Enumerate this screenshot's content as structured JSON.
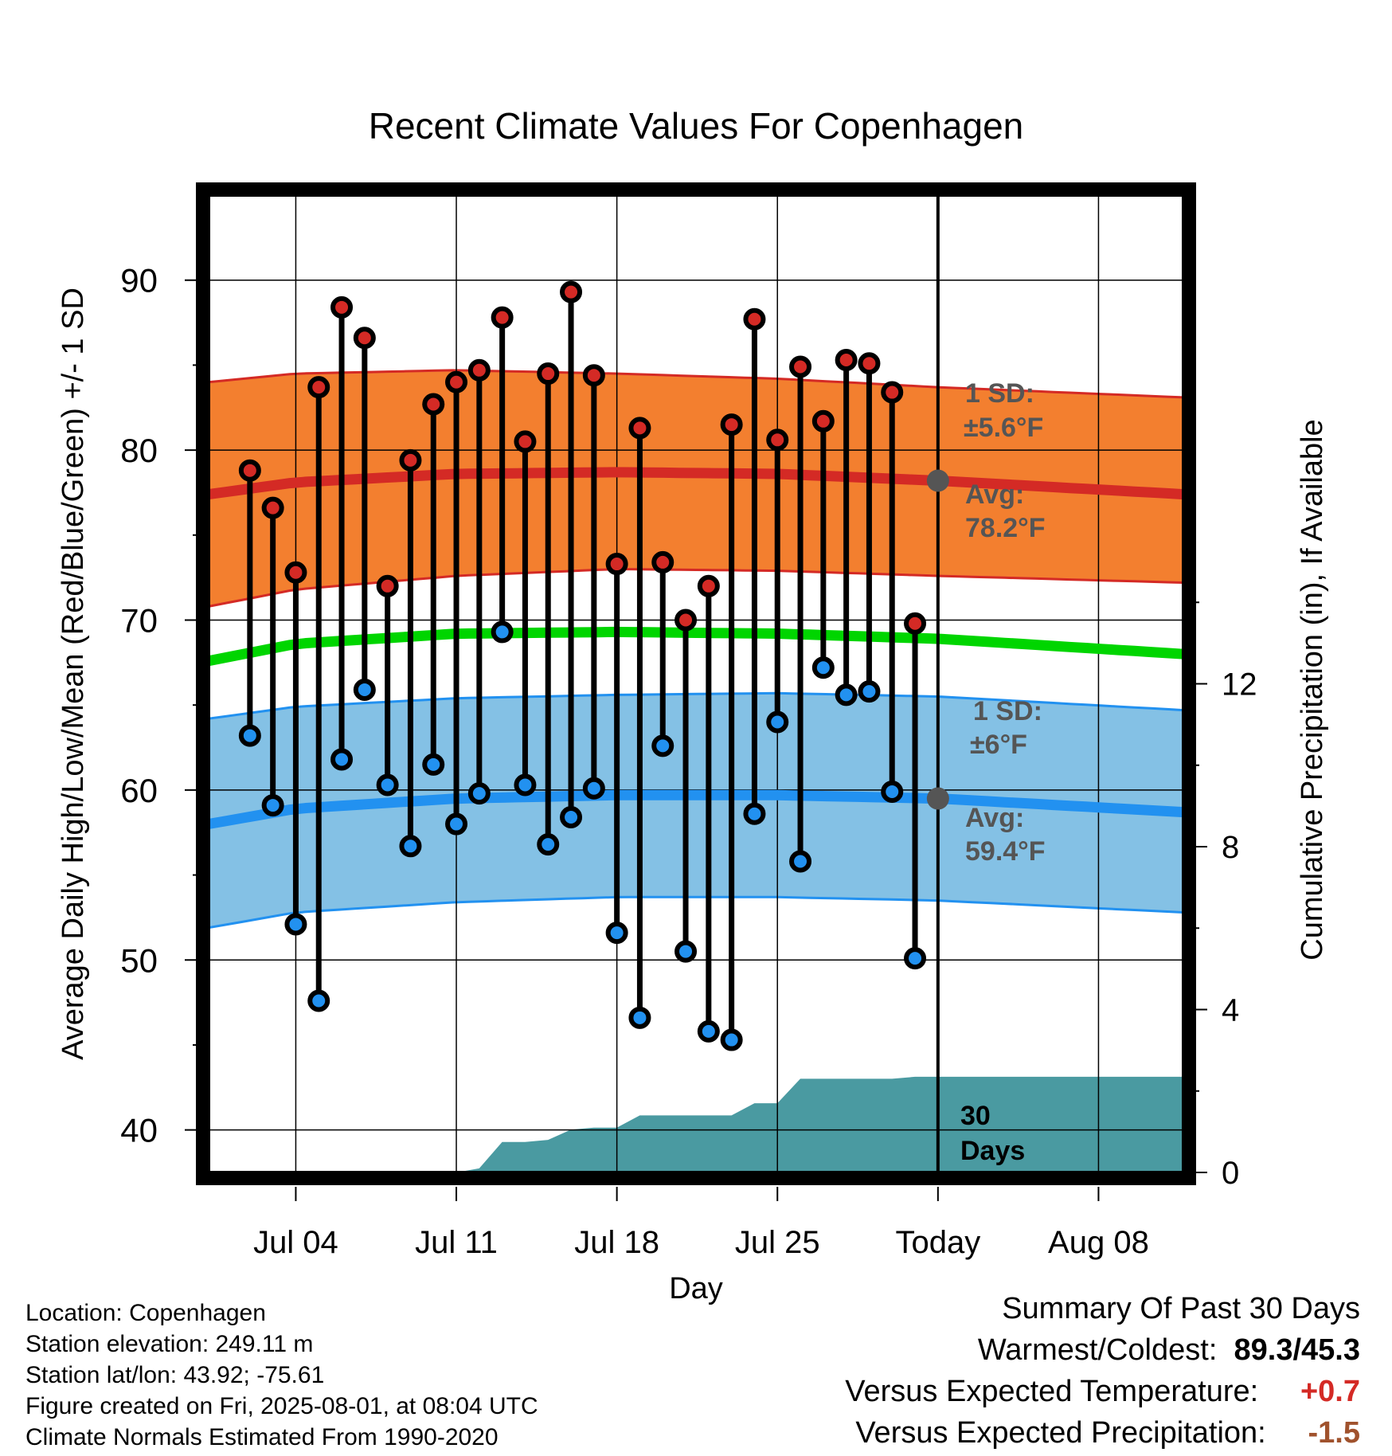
{
  "chart_data": {
    "type": "line",
    "title": "Recent Climate Values For Copenhagen",
    "xlabel": "Day",
    "ylabel": "Average Daily High/Low/Mean (Red/Blue/Green) +/- 1 SD",
    "y2label": "Cumulative Precipitation (in), If Available",
    "ylim": [
      37.5,
      95
    ],
    "y2lim": [
      0,
      24
    ],
    "yticks": [
      40,
      50,
      60,
      70,
      80,
      90
    ],
    "y2ticks": [
      0,
      4,
      8,
      12
    ],
    "xticks": [
      "Jul 04",
      "Jul 11",
      "Jul 18",
      "Jul 25",
      "Today",
      "Aug 08"
    ],
    "xtick_days": [
      4,
      11,
      18,
      25,
      32,
      39
    ],
    "xlim": [
      0.2,
      42.7
    ],
    "today_day": 32,
    "grid": true,
    "observed": {
      "days": [
        2,
        3,
        4,
        5,
        6,
        7,
        8,
        9,
        10,
        11,
        12,
        13,
        14,
        15,
        16,
        17,
        18,
        19,
        20,
        21,
        22,
        23,
        24,
        25,
        26,
        27,
        28,
        29,
        30,
        31
      ],
      "highs": [
        78.8,
        76.6,
        72.8,
        83.7,
        88.4,
        86.6,
        72.0,
        79.4,
        82.7,
        84.0,
        84.7,
        87.8,
        80.5,
        84.5,
        89.3,
        84.4,
        73.3,
        81.3,
        73.4,
        70.0,
        72.0,
        81.5,
        87.7,
        80.6,
        84.9,
        81.7,
        85.3,
        85.1,
        83.4,
        69.8
      ],
      "lows": [
        63.2,
        59.1,
        52.1,
        47.6,
        61.8,
        65.9,
        60.3,
        56.7,
        61.5,
        58.0,
        59.8,
        69.3,
        60.3,
        56.8,
        58.4,
        60.1,
        51.6,
        46.6,
        62.6,
        50.5,
        45.8,
        45.3,
        58.6,
        64.0,
        55.8,
        67.2,
        65.6,
        65.8,
        59.9,
        50.1
      ]
    },
    "normals": {
      "days": [
        0.2,
        4,
        11,
        18,
        25,
        32,
        42.7
      ],
      "high_avg": [
        77.4,
        78.1,
        78.6,
        78.7,
        78.6,
        78.2,
        77.4
      ],
      "high_sd_upper": [
        84.0,
        84.5,
        84.7,
        84.5,
        84.2,
        83.7,
        83.1
      ],
      "high_sd_lower": [
        70.8,
        71.8,
        72.6,
        73.0,
        72.9,
        72.6,
        72.2
      ],
      "mean_avg": [
        67.6,
        68.6,
        69.2,
        69.3,
        69.2,
        68.9,
        68.0
      ],
      "low_avg": [
        58.0,
        58.9,
        59.5,
        59.7,
        59.7,
        59.5,
        58.7
      ],
      "low_sd_upper": [
        64.2,
        64.9,
        65.4,
        65.6,
        65.7,
        65.5,
        64.7
      ],
      "low_sd_lower": [
        51.9,
        52.8,
        53.4,
        53.7,
        53.7,
        53.5,
        52.8
      ]
    },
    "precip_cumulative": {
      "days": [
        0.2,
        11,
        12,
        13,
        14,
        15,
        16,
        17,
        18,
        19,
        20,
        21,
        22,
        23,
        24,
        25,
        26,
        27,
        28,
        29,
        30,
        31,
        32,
        42.7
      ],
      "values": [
        0,
        0,
        0.1,
        0.75,
        0.75,
        0.8,
        1.05,
        1.1,
        1.1,
        1.4,
        1.4,
        1.4,
        1.4,
        1.4,
        1.7,
        1.7,
        2.3,
        2.3,
        2.3,
        2.3,
        2.3,
        2.35,
        2.35,
        2.35
      ]
    },
    "annotations": {
      "high_sd": [
        "1 SD:",
        "±5.6°F"
      ],
      "high_avg": [
        "Avg:",
        "78.2°F"
      ],
      "low_sd": [
        "1 SD:",
        "±6°F"
      ],
      "low_avg": [
        "Avg:",
        "59.4°F"
      ],
      "precip_days": [
        "30",
        "Days"
      ]
    },
    "colors": {
      "high": "#d42a25",
      "high_band": "#f37f2f",
      "low": "#2291f0",
      "low_band": "#84c1e5",
      "mean": "#00d500",
      "precip": "#4a9aa1",
      "annotation": "#555555"
    }
  },
  "info": [
    "Location: Copenhagen",
    "Station elevation: 249.11 m",
    "Station lat/lon: 43.92; -75.61",
    "Figure created on Fri, 2025-08-01, at 08:04 UTC",
    "Climate Normals Estimated From 1990-2020"
  ],
  "summary": {
    "title": "Summary Of Past 30 Days",
    "warmest_label": "Warmest/Coldest:",
    "warmest_value": "89.3/45.3",
    "temp_label": "Versus Expected Temperature:",
    "temp_value": "+0.7",
    "precip_label": "Versus Expected Precipitation:",
    "precip_value": "-1.5",
    "temp_color": "#d42a25",
    "precip_color": "#a0522d"
  }
}
